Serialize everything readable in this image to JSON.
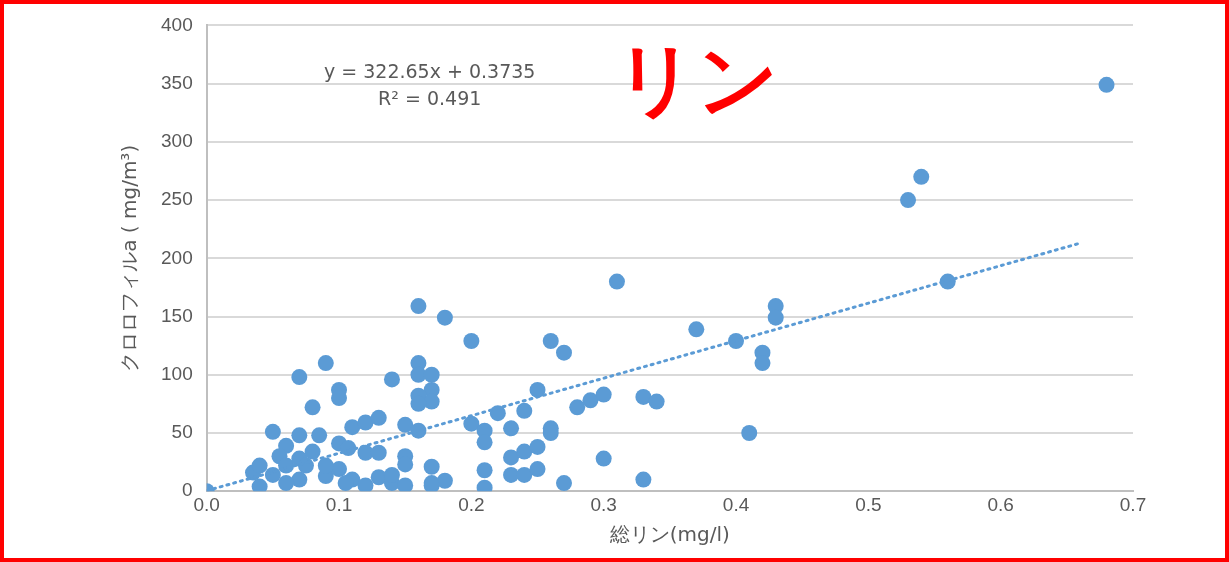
{
  "chart_data": {
    "type": "scatter",
    "title": "リン",
    "xlabel": "総リン(mg/l)",
    "ylabel": "クロロフィルa ( mg/m³)",
    "annotations": [
      "y = 322.65x + 0.3735",
      "R² = 0.491"
    ],
    "xlim": [
      0,
      0.7
    ],
    "xticks": [
      {
        "value": 0,
        "label": "0.0"
      },
      0.1,
      0.2,
      0.3,
      {
        "value": 0.4,
        "label": "0.4"
      },
      0.5,
      0.6,
      0.7
    ],
    "ylim": [
      0,
      400
    ],
    "yticks": [
      0,
      50,
      100,
      150,
      200,
      250,
      300,
      350,
      400
    ],
    "grid": "y",
    "legend": false,
    "marker": "circle",
    "series": [
      {
        "color": "#5b9bd5",
        "x": [
          0,
          0.04,
          0.035,
          0.04,
          0.05,
          0.06,
          0.055,
          0.06,
          0.07,
          0.085,
          0.07,
          0.08,
          0.1,
          0.11,
          0.12,
          0.13,
          0.15,
          0.16,
          0.107,
          0.12,
          0.13,
          0.15,
          0.15,
          0.17,
          0.17,
          0.18,
          0.21,
          0.21,
          0.05,
          0.07,
          0.09,
          0.1,
          0.11,
          0.13,
          0.14,
          0.15,
          0.14,
          0.075,
          0.09,
          0.06,
          0.105,
          0.12,
          0.07,
          0.09,
          0.08,
          0.14,
          0.1,
          0.1,
          0.16,
          0.18,
          0.2,
          0.16,
          0.16,
          0.17,
          0.17,
          0.16,
          0.17,
          0.16,
          0.17,
          0.2,
          0.21,
          0.21,
          0.22,
          0.23,
          0.23,
          0.23,
          0.24,
          0.24,
          0.24,
          0.25,
          0.25,
          0.25,
          0.26,
          0.26,
          0.26,
          0.27,
          0.27,
          0.28,
          0.29,
          0.3,
          0.3,
          0.31,
          0.33,
          0.33,
          0.34,
          0.37,
          0.4,
          0.41,
          0.42,
          0.42,
          0.43,
          0.43,
          0.53,
          0.54,
          0.56,
          0.68
        ],
        "values": [
          0,
          4,
          16,
          22,
          51,
          39,
          30,
          22,
          48,
          48,
          28,
          34,
          41,
          55,
          59,
          63,
          57,
          52,
          37,
          33,
          33,
          30,
          23,
          21,
          7,
          9,
          3,
          18,
          14,
          10,
          13,
          19,
          10,
          12,
          7,
          5,
          14,
          22,
          22,
          7,
          7,
          5,
          98,
          110,
          72,
          96,
          87,
          80,
          159,
          149,
          129,
          110,
          100,
          100,
          87,
          82,
          77,
          75,
          5,
          58,
          52,
          42,
          67,
          54,
          29,
          14,
          69,
          34,
          14,
          87,
          38,
          19,
          129,
          54,
          50,
          119,
          7,
          72,
          78,
          83,
          28,
          180,
          81,
          10,
          77,
          139,
          129,
          50,
          119,
          110,
          159,
          149,
          250,
          270,
          180,
          349
        ]
      },
      {
        "type": "line",
        "color": "#5b9bd5",
        "line_style": "dotted",
        "marker": "none",
        "x": [
          0,
          0.66
        ],
        "values": [
          0.4,
          213
        ]
      }
    ]
  }
}
